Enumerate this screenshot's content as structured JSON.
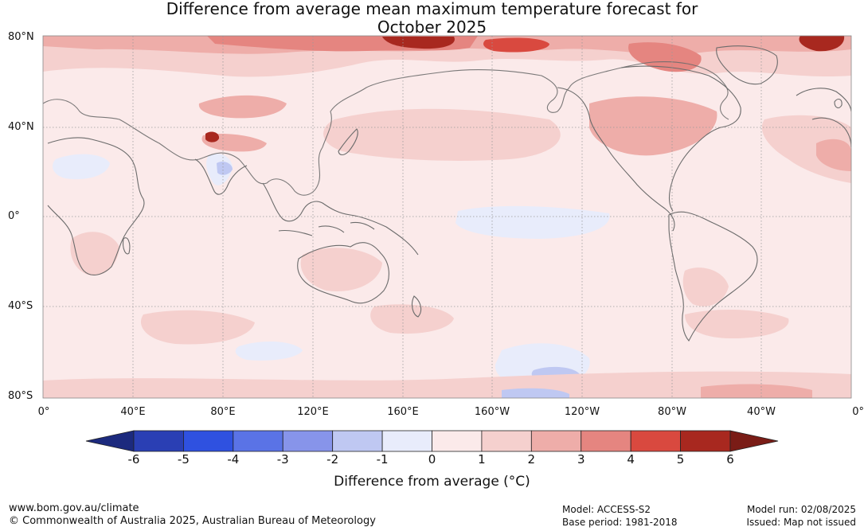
{
  "title": {
    "line1": "Difference from average mean maximum temperature forecast for",
    "line2": "October 2025"
  },
  "map": {
    "lat_labels": [
      "80°N",
      "40°N",
      "0°",
      "40°S",
      "80°S"
    ],
    "lon_labels": [
      "0°",
      "40°E",
      "80°E",
      "120°E",
      "160°E",
      "160°W",
      "120°W",
      "80°W",
      "40°W",
      "0°"
    ],
    "ocean_color": "#fbeaea",
    "land_outline_color": "#6b6b6b"
  },
  "colorbar": {
    "ticks": [
      "-6",
      "-5",
      "-4",
      "-3",
      "-2",
      "-1",
      "0",
      "1",
      "2",
      "3",
      "4",
      "5",
      "6"
    ],
    "colors": [
      "#1c2a7e",
      "#2a3fb4",
      "#2f51e0",
      "#5a73e6",
      "#8794ea",
      "#bfc8f2",
      "#e8ecfb",
      "#fbeaea",
      "#f5d0ce",
      "#eeada9",
      "#e58580",
      "#d9493f",
      "#a8281f",
      "#7a1c16"
    ],
    "label": "Difference from average (°C)"
  },
  "footer": {
    "website": "www.bom.gov.au/climate",
    "copyright": "© Commonwealth of Australia 2025, Australian Bureau of Meteorology",
    "model": "Model: ACCESS-S2",
    "base_period": "Base period: 1981-2018",
    "model_run": "Model run: 02/08/2025",
    "issued": "Issued: Map not issued"
  }
}
